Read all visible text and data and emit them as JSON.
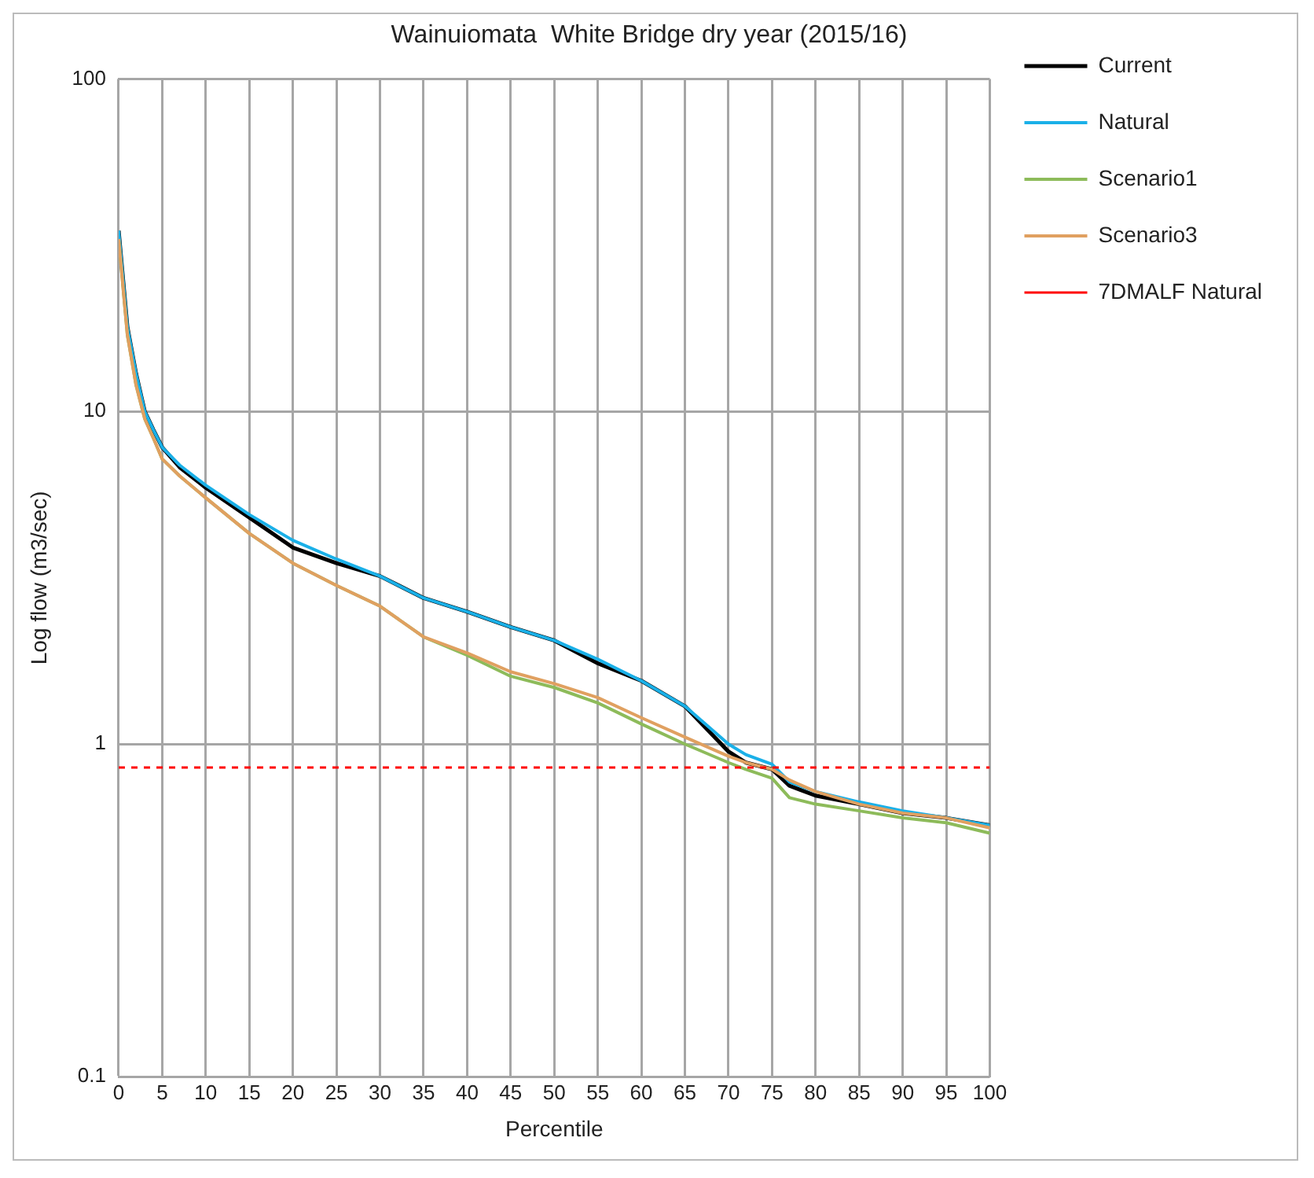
{
  "chart_data": {
    "type": "line",
    "title": "Wainuiomata  White Bridge dry year (2015/16)",
    "xlabel": "Percentile",
    "ylabel": "Log flow (m3/sec)",
    "x": [
      0,
      1,
      2,
      3,
      4,
      5,
      7,
      10,
      15,
      20,
      25,
      30,
      35,
      40,
      45,
      50,
      55,
      60,
      65,
      70,
      72,
      75,
      77,
      80,
      85,
      90,
      95,
      100
    ],
    "series": [
      {
        "name": "Current",
        "color": "#000000",
        "values": [
          35,
          18,
          13,
          10,
          8.8,
          7.8,
          6.8,
          5.9,
          4.8,
          3.9,
          3.5,
          3.2,
          2.75,
          2.5,
          2.25,
          2.05,
          1.75,
          1.55,
          1.3,
          0.95,
          0.88,
          0.84,
          0.75,
          0.7,
          0.66,
          0.62,
          0.6,
          0.57
        ]
      },
      {
        "name": "Natural",
        "color": "#1ab0e8",
        "values": [
          35,
          18,
          13,
          10,
          8.8,
          7.8,
          6.9,
          6.0,
          4.9,
          4.1,
          3.6,
          3.2,
          2.75,
          2.5,
          2.25,
          2.05,
          1.8,
          1.55,
          1.3,
          1.0,
          0.93,
          0.87,
          0.77,
          0.72,
          0.67,
          0.63,
          0.6,
          0.57
        ]
      },
      {
        "name": "Scenario1",
        "color": "#8dbb5a",
        "values": [
          33,
          17,
          12,
          9.5,
          8.3,
          7.2,
          6.4,
          5.5,
          4.3,
          3.5,
          3.0,
          2.6,
          2.1,
          1.85,
          1.6,
          1.48,
          1.33,
          1.15,
          1.0,
          0.88,
          0.84,
          0.79,
          0.69,
          0.66,
          0.63,
          0.6,
          0.58,
          0.54
        ]
      },
      {
        "name": "Scenario3",
        "color": "#e0a060",
        "values": [
          33,
          17,
          12,
          9.5,
          8.3,
          7.2,
          6.4,
          5.5,
          4.3,
          3.5,
          3.0,
          2.6,
          2.1,
          1.88,
          1.65,
          1.52,
          1.38,
          1.2,
          1.05,
          0.92,
          0.88,
          0.84,
          0.78,
          0.72,
          0.66,
          0.62,
          0.6,
          0.56
        ]
      }
    ],
    "ref_lines": [
      {
        "axis": "y",
        "value": 0.85,
        "label": "7DMALF Natural",
        "color": "#ff0000",
        "line_style": "dashed"
      }
    ],
    "xlim": [
      0,
      100
    ],
    "xticks": [
      0,
      5,
      10,
      15,
      20,
      25,
      30,
      35,
      40,
      45,
      50,
      55,
      60,
      65,
      70,
      75,
      80,
      85,
      90,
      95,
      100
    ],
    "ylim": [
      0.1,
      100
    ],
    "yticks": [
      0.1,
      1,
      10,
      100
    ],
    "log": true,
    "grid": true,
    "legend": "right"
  }
}
